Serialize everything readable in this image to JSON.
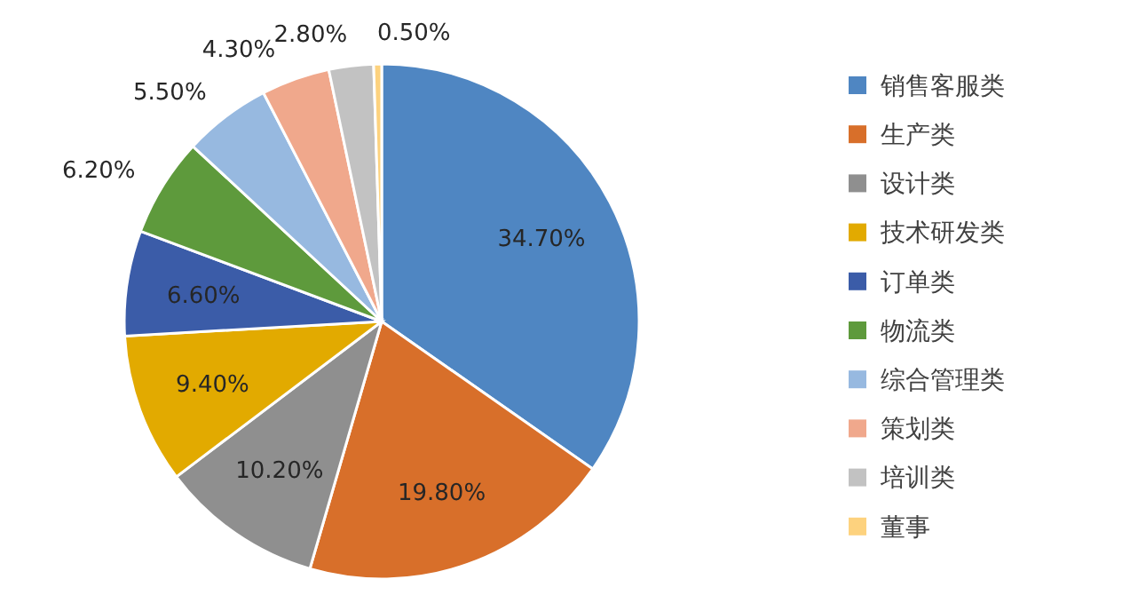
{
  "chart_data": {
    "type": "pie",
    "categories": [
      "销售客服类",
      "生产类",
      "设计类",
      "技术研发类",
      "订单类",
      "物流类",
      "综合管理类",
      "策划类",
      "培训类",
      "董事"
    ],
    "values": [
      34.7,
      19.8,
      10.2,
      9.4,
      6.6,
      6.2,
      5.5,
      4.3,
      2.8,
      0.5
    ],
    "value_labels": [
      "34.70%",
      "19.80%",
      "10.20%",
      "9.40%",
      "6.60%",
      "6.20%",
      "5.50%",
      "4.30%",
      "2.80%",
      "0.50%"
    ],
    "colors": [
      "#4f86c2",
      "#d86f2a",
      "#8f8f8f",
      "#e2aa00",
      "#3b5ca8",
      "#5e9a3c",
      "#97b9e0",
      "#f0a88c",
      "#c2c2c2",
      "#fdd27e"
    ],
    "legend": "right"
  }
}
